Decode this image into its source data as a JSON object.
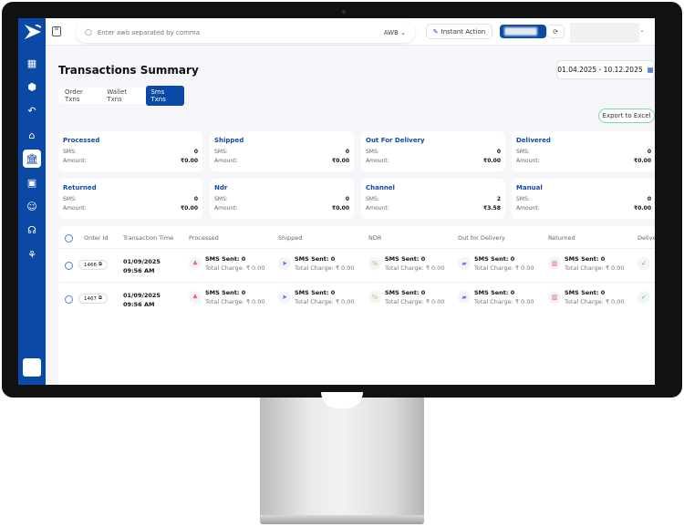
{
  "header": {
    "search_placeholder": "Enter awb separated by comma",
    "search_type": "AWB",
    "instant_action": "Instant Action"
  },
  "page": {
    "title": "Transactions Summary",
    "date_range": "01.04.2025 - 10.12.2025",
    "export": "Export to Excel"
  },
  "tabs": [
    {
      "label": "Order Txns"
    },
    {
      "label": "Wallet Txns"
    },
    {
      "label": "Sms Txns"
    }
  ],
  "active_tab": "Sms Txns",
  "accent_color": "#0b49a6",
  "sms_label": "SMS:",
  "amount_label": "Amount:",
  "cards": [
    {
      "title": "Processed",
      "sms": "0",
      "amount": "₹0.00"
    },
    {
      "title": "Shipped",
      "sms": "0",
      "amount": "₹0.00"
    },
    {
      "title": "Out For Delivery",
      "sms": "0",
      "amount": "₹0.00"
    },
    {
      "title": "Delivered",
      "sms": "0",
      "amount": "₹0.00"
    },
    {
      "title": "Returned",
      "sms": "0",
      "amount": "₹0.00"
    },
    {
      "title": "Ndr",
      "sms": "0",
      "amount": "₹0.00"
    },
    {
      "title": "Channel",
      "sms": "2",
      "amount": "₹3.58"
    },
    {
      "title": "Manual",
      "sms": "0",
      "amount": "₹0.00"
    }
  ],
  "table": {
    "headers": [
      "Order Id",
      "Transaction Time",
      "Processed",
      "Shipped",
      "NDR",
      "Out for Delivery",
      "Returned",
      "Delive"
    ],
    "rows": [
      {
        "order_id": "1466",
        "date": "01/09/2025",
        "time": "09:56 AM",
        "sms_sent": "SMS Sent: 0",
        "charge": "Total Charge: ₹ 0.00"
      },
      {
        "order_id": "1467",
        "date": "01/09/2025",
        "time": "09:56 AM",
        "sms_sent": "SMS Sent: 0",
        "charge": "Total Charge: ₹ 0.00"
      }
    ]
  }
}
